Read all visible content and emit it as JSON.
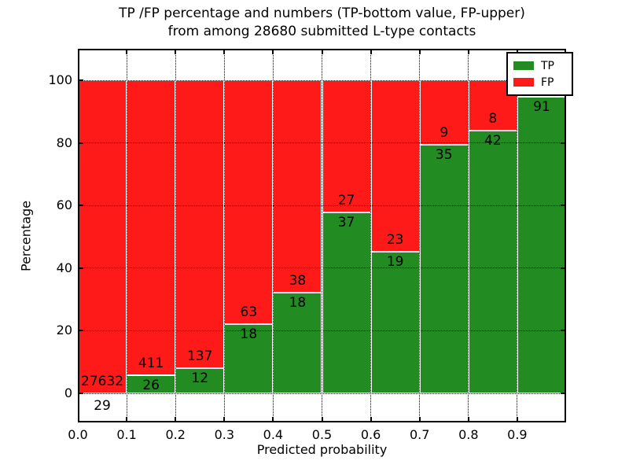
{
  "chart_data": {
    "type": "bar",
    "stacked": true,
    "title_line1": "TP /FP percentage and numbers (TP-bottom value, FP-upper)",
    "title_line2": "from among 28680 submitted L-type contacts",
    "xlabel": "Predicted probability",
    "ylabel": "Percentage",
    "xlim": [
      0.0,
      1.0
    ],
    "ylim": [
      -10,
      110
    ],
    "x_ticks": [
      "0.0",
      "0.1",
      "0.2",
      "0.3",
      "0.4",
      "0.5",
      "0.6",
      "0.7",
      "0.8",
      "0.9"
    ],
    "y_ticks": [
      "0",
      "20",
      "40",
      "60",
      "80",
      "100"
    ],
    "y_tick_values": [
      0,
      20,
      40,
      60,
      80,
      100
    ],
    "grid": "dotted-on-top",
    "colors": {
      "tp": "#228B22",
      "fp": "#FF1A1A",
      "grid": "#000000",
      "bar_edge": "#FFFFFF"
    },
    "legend": {
      "position": "upper-right",
      "entries": [
        {
          "label": "TP",
          "color_key": "tp"
        },
        {
          "label": "FP",
          "color_key": "fp"
        }
      ]
    },
    "bins": [
      {
        "range": [
          0.0,
          0.1
        ],
        "tp_label": "29",
        "fp_label": "27632",
        "tp_pct": 0.1,
        "tp_label_below_axis": true
      },
      {
        "range": [
          0.1,
          0.2
        ],
        "tp_label": "26",
        "fp_label": "411",
        "tp_pct": 5.9
      },
      {
        "range": [
          0.2,
          0.3
        ],
        "tp_label": "12",
        "fp_label": "137",
        "tp_pct": 8.1
      },
      {
        "range": [
          0.3,
          0.4
        ],
        "tp_label": "18",
        "fp_label": "63",
        "tp_pct": 22.2
      },
      {
        "range": [
          0.4,
          0.5
        ],
        "tp_label": "18",
        "fp_label": "38",
        "tp_pct": 32.1
      },
      {
        "range": [
          0.5,
          0.6
        ],
        "tp_label": "37",
        "fp_label": "27",
        "tp_pct": 57.8
      },
      {
        "range": [
          0.6,
          0.7
        ],
        "tp_label": "19",
        "fp_label": "23",
        "tp_pct": 45.2
      },
      {
        "range": [
          0.7,
          0.8
        ],
        "tp_label": "35",
        "fp_label": "9",
        "tp_pct": 79.5
      },
      {
        "range": [
          0.8,
          0.9
        ],
        "tp_label": "42",
        "fp_label": "8",
        "tp_pct": 84.0
      },
      {
        "range": [
          0.9,
          1.0
        ],
        "tp_label": "91",
        "fp_label": "",
        "tp_pct": 94.8
      }
    ]
  }
}
